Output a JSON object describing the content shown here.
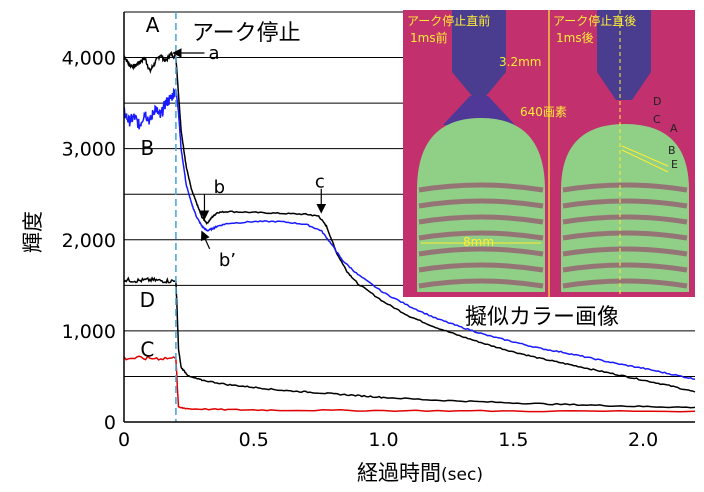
{
  "chart_data": {
    "type": "line",
    "xlabel": "経過時間",
    "xlabel_unit": "(sec)",
    "ylabel": "輝度",
    "xlim": [
      0,
      2.2
    ],
    "ylim": [
      0,
      4500
    ],
    "xticks": [
      {
        "value": 0,
        "label": "0"
      },
      {
        "value": 0.5,
        "label": "0.5"
      },
      {
        "value": 1.0,
        "label": "1.0"
      },
      {
        "value": 1.5,
        "label": "1.5"
      },
      {
        "value": 2.0,
        "label": "2.0"
      }
    ],
    "yticks": [
      {
        "value": 0,
        "label": "0"
      },
      {
        "value": 1000,
        "label": "1,000"
      },
      {
        "value": 2000,
        "label": "2,000"
      },
      {
        "value": 3000,
        "label": "3,000"
      },
      {
        "value": 4000,
        "label": "4,000"
      }
    ],
    "gridlines_y": [
      500,
      1000,
      1500,
      2000,
      2500,
      3000,
      3500,
      4000,
      4500
    ],
    "arc_stop": {
      "x": 0.2,
      "label": "アーク停止"
    },
    "series": [
      {
        "letter": "A",
        "color": "#000000",
        "label_pos": [
          0.11,
          4280
        ],
        "points": [
          [
            0,
            4020
          ],
          [
            0.02,
            3920
          ],
          [
            0.04,
            3900
          ],
          [
            0.06,
            3950
          ],
          [
            0.08,
            4000
          ],
          [
            0.1,
            3850
          ],
          [
            0.12,
            3950
          ],
          [
            0.14,
            4030
          ],
          [
            0.16,
            3960
          ],
          [
            0.18,
            4040
          ],
          [
            0.2,
            4000
          ],
          [
            0.21,
            3600
          ],
          [
            0.22,
            3200
          ],
          [
            0.24,
            2800
          ],
          [
            0.26,
            2550
          ],
          [
            0.28,
            2400
          ],
          [
            0.3,
            2250
          ],
          [
            0.32,
            2180
          ],
          [
            0.34,
            2250
          ],
          [
            0.36,
            2300
          ],
          [
            0.4,
            2310
          ],
          [
            0.5,
            2300
          ],
          [
            0.6,
            2290
          ],
          [
            0.7,
            2280
          ],
          [
            0.75,
            2260
          ],
          [
            0.78,
            2150
          ],
          [
            0.82,
            1850
          ],
          [
            0.86,
            1650
          ],
          [
            0.9,
            1520
          ],
          [
            1.0,
            1320
          ],
          [
            1.1,
            1160
          ],
          [
            1.2,
            1040
          ],
          [
            1.3,
            940
          ],
          [
            1.4,
            850
          ],
          [
            1.5,
            770
          ],
          [
            1.6,
            700
          ],
          [
            1.7,
            640
          ],
          [
            1.8,
            580
          ],
          [
            1.9,
            520
          ],
          [
            2.0,
            460
          ],
          [
            2.1,
            400
          ],
          [
            2.2,
            330
          ]
        ]
      },
      {
        "letter": "B",
        "color": "#1a1aff",
        "label_pos": [
          0.09,
          2930
        ],
        "points": [
          [
            0,
            3400
          ],
          [
            0.02,
            3300
          ],
          [
            0.04,
            3350
          ],
          [
            0.06,
            3250
          ],
          [
            0.08,
            3400
          ],
          [
            0.1,
            3300
          ],
          [
            0.12,
            3450
          ],
          [
            0.14,
            3350
          ],
          [
            0.16,
            3500
          ],
          [
            0.18,
            3550
          ],
          [
            0.2,
            3650
          ],
          [
            0.21,
            3400
          ],
          [
            0.22,
            3000
          ],
          [
            0.24,
            2600
          ],
          [
            0.26,
            2400
          ],
          [
            0.28,
            2250
          ],
          [
            0.3,
            2150
          ],
          [
            0.32,
            2100
          ],
          [
            0.34,
            2120
          ],
          [
            0.36,
            2150
          ],
          [
            0.4,
            2180
          ],
          [
            0.5,
            2200
          ],
          [
            0.6,
            2200
          ],
          [
            0.7,
            2170
          ],
          [
            0.76,
            2100
          ],
          [
            0.8,
            1950
          ],
          [
            0.84,
            1780
          ],
          [
            0.9,
            1620
          ],
          [
            1.0,
            1420
          ],
          [
            1.1,
            1270
          ],
          [
            1.2,
            1140
          ],
          [
            1.3,
            1040
          ],
          [
            1.4,
            950
          ],
          [
            1.5,
            880
          ],
          [
            1.6,
            810
          ],
          [
            1.7,
            760
          ],
          [
            1.8,
            700
          ],
          [
            1.9,
            640
          ],
          [
            2.0,
            590
          ],
          [
            2.1,
            530
          ],
          [
            2.2,
            470
          ]
        ]
      },
      {
        "letter": "D",
        "color": "#000000",
        "label_pos": [
          0.09,
          1260
        ],
        "points": [
          [
            0,
            1560
          ],
          [
            0.05,
            1550
          ],
          [
            0.1,
            1560
          ],
          [
            0.15,
            1550
          ],
          [
            0.2,
            1545
          ],
          [
            0.205,
            1200
          ],
          [
            0.21,
            800
          ],
          [
            0.22,
            600
          ],
          [
            0.25,
            500
          ],
          [
            0.3,
            460
          ],
          [
            0.4,
            410
          ],
          [
            0.5,
            380
          ],
          [
            0.6,
            350
          ],
          [
            0.7,
            330
          ],
          [
            0.8,
            310
          ],
          [
            0.9,
            290
          ],
          [
            1.0,
            270
          ],
          [
            1.2,
            240
          ],
          [
            1.4,
            220
          ],
          [
            1.6,
            200
          ],
          [
            1.8,
            185
          ],
          [
            2.0,
            170
          ],
          [
            2.2,
            160
          ]
        ]
      },
      {
        "letter": "C",
        "color": "#e00000",
        "label_pos": [
          0.09,
          720
        ],
        "points": [
          [
            0,
            700
          ],
          [
            0.1,
            700
          ],
          [
            0.2,
            700
          ],
          [
            0.205,
            420
          ],
          [
            0.21,
            160
          ],
          [
            0.25,
            145
          ],
          [
            0.4,
            135
          ],
          [
            0.6,
            130
          ],
          [
            1.0,
            125
          ],
          [
            1.5,
            120
          ],
          [
            2.2,
            118
          ]
        ]
      }
    ],
    "annotations": [
      {
        "text": "a",
        "x": 0.31,
        "y": 4050,
        "arrow_from": [
          0.31,
          4050
        ],
        "arrow_to": [
          0.19,
          4050
        ]
      },
      {
        "text": "b",
        "x": 0.33,
        "y": 2580,
        "arrow_from": [
          0.31,
          2500
        ],
        "arrow_to": [
          0.31,
          2230
        ]
      },
      {
        "text": "b’",
        "x": 0.35,
        "y": 1780,
        "arrow_from": [
          0.33,
          1900
        ],
        "arrow_to": [
          0.3,
          2090
        ]
      },
      {
        "text": "c",
        "x": 0.72,
        "y": 2640,
        "arrow_from": [
          0.76,
          2560
        ],
        "arrow_to": [
          0.76,
          2300
        ]
      }
    ]
  },
  "inset": {
    "left_title": "アーク停止直前",
    "left_sub": "1ms前",
    "right_title": "アーク停止直後",
    "right_sub": "1ms後",
    "dim_electrode": "3.2mm",
    "dim_pixels": "640画素",
    "dim_weld": "8mm",
    "labels": [
      "D",
      "C",
      "A",
      "B",
      "E"
    ],
    "caption": "擬似カラー画像",
    "colors": {
      "bg": "#c2306e",
      "electrode": "#4a3d8f",
      "pool": "#8fcf86",
      "yellow": "#ffee33"
    }
  }
}
